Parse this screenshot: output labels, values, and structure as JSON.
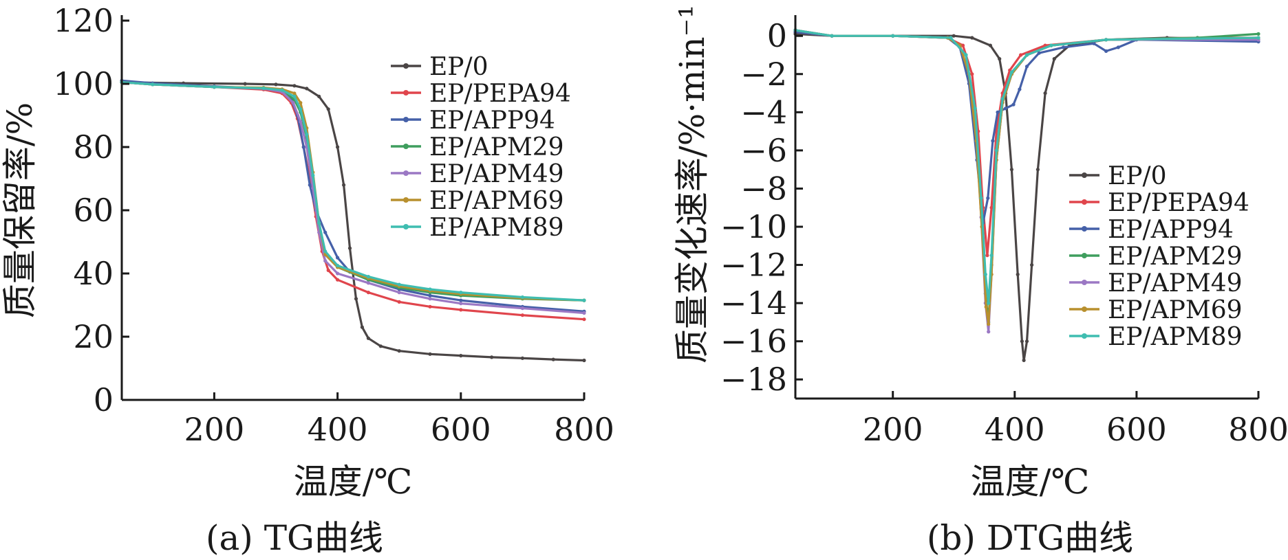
{
  "chart_data": [
    {
      "type": "line",
      "caption": "(a) TG曲线",
      "xlabel": "温度/℃",
      "ylabel": "质量保留率/%",
      "xlim": [
        50,
        800
      ],
      "ylim": [
        0,
        120
      ],
      "xticks": [
        200,
        400,
        600,
        800
      ],
      "yticks": [
        0,
        20,
        40,
        60,
        80,
        100,
        120
      ],
      "grid": false,
      "legend_position": "top-right",
      "series": [
        {
          "name": "EP/0",
          "color": "#4a4545",
          "points": [
            [
              50,
              100.5
            ],
            [
              150,
              100.2
            ],
            [
              250,
              100
            ],
            [
              300,
              99.8
            ],
            [
              330,
              99.4
            ],
            [
              350,
              98.5
            ],
            [
              370,
              96
            ],
            [
              385,
              92
            ],
            [
              400,
              80
            ],
            [
              410,
              68
            ],
            [
              420,
              48
            ],
            [
              430,
              32
            ],
            [
              440,
              23
            ],
            [
              450,
              19.5
            ],
            [
              470,
              17
            ],
            [
              500,
              15.5
            ],
            [
              550,
              14.5
            ],
            [
              600,
              14
            ],
            [
              650,
              13.5
            ],
            [
              700,
              13.2
            ],
            [
              750,
              12.8
            ],
            [
              800,
              12.5
            ]
          ]
        },
        {
          "name": "EP/PEPA94",
          "color": "#e0454c",
          "points": [
            [
              50,
              100.5
            ],
            [
              100,
              99.8
            ],
            [
              200,
              99
            ],
            [
              280,
              98.2
            ],
            [
              310,
              97
            ],
            [
              325,
              94
            ],
            [
              335,
              89
            ],
            [
              345,
              80
            ],
            [
              355,
              70
            ],
            [
              365,
              58
            ],
            [
              375,
              47
            ],
            [
              385,
              41
            ],
            [
              400,
              38
            ],
            [
              450,
              34
            ],
            [
              500,
              31
            ],
            [
              550,
              29.5
            ],
            [
              600,
              28.5
            ],
            [
              700,
              26.8
            ],
            [
              800,
              25.5
            ]
          ]
        },
        {
          "name": "EP/APP94",
          "color": "#4560a8",
          "points": [
            [
              50,
              101
            ],
            [
              100,
              100.2
            ],
            [
              200,
              99.2
            ],
            [
              280,
              98.5
            ],
            [
              310,
              97.5
            ],
            [
              325,
              95
            ],
            [
              335,
              90
            ],
            [
              345,
              80
            ],
            [
              355,
              68
            ],
            [
              365,
              60
            ],
            [
              380,
              53
            ],
            [
              400,
              45
            ],
            [
              420,
              40.5
            ],
            [
              450,
              38
            ],
            [
              500,
              35
            ],
            [
              550,
              33
            ],
            [
              600,
              31.5
            ],
            [
              700,
              29.5
            ],
            [
              800,
              28
            ]
          ]
        },
        {
          "name": "EP/APM29",
          "color": "#3f9e5e",
          "points": [
            [
              50,
              100.5
            ],
            [
              100,
              99.8
            ],
            [
              200,
              99
            ],
            [
              280,
              98.5
            ],
            [
              310,
              97.8
            ],
            [
              330,
              95
            ],
            [
              340,
              91
            ],
            [
              350,
              83
            ],
            [
              360,
              70
            ],
            [
              370,
              55
            ],
            [
              380,
              46
            ],
            [
              400,
              42
            ],
            [
              450,
              38
            ],
            [
              500,
              35.5
            ],
            [
              550,
              34
            ],
            [
              600,
              33
            ],
            [
              700,
              32
            ],
            [
              800,
              31.5
            ]
          ]
        },
        {
          "name": "EP/APM49",
          "color": "#9b78c4",
          "points": [
            [
              50,
              100.5
            ],
            [
              100,
              99.8
            ],
            [
              200,
              99
            ],
            [
              280,
              98.5
            ],
            [
              310,
              97.5
            ],
            [
              328,
              94
            ],
            [
              340,
              88
            ],
            [
              350,
              80
            ],
            [
              360,
              67
            ],
            [
              370,
              53
            ],
            [
              380,
              44
            ],
            [
              400,
              40
            ],
            [
              450,
              37
            ],
            [
              500,
              34
            ],
            [
              550,
              32
            ],
            [
              600,
              30.5
            ],
            [
              700,
              29
            ],
            [
              800,
              27.5
            ]
          ]
        },
        {
          "name": "EP/APM69",
          "color": "#b8902e",
          "points": [
            [
              50,
              100.5
            ],
            [
              100,
              99.8
            ],
            [
              200,
              99
            ],
            [
              280,
              98.8
            ],
            [
              310,
              98.3
            ],
            [
              330,
              97
            ],
            [
              340,
              94
            ],
            [
              350,
              86
            ],
            [
              360,
              72
            ],
            [
              370,
              56
            ],
            [
              380,
              46
            ],
            [
              400,
              42
            ],
            [
              450,
              38.5
            ],
            [
              500,
              36
            ],
            [
              550,
              34.5
            ],
            [
              600,
              33.5
            ],
            [
              700,
              32.2
            ],
            [
              800,
              31.5
            ]
          ]
        },
        {
          "name": "EP/APM89",
          "color": "#3fbdb0",
          "points": [
            [
              50,
              100.5
            ],
            [
              100,
              99.8
            ],
            [
              200,
              99
            ],
            [
              280,
              98.6
            ],
            [
              310,
              98
            ],
            [
              330,
              96
            ],
            [
              340,
              92
            ],
            [
              350,
              84
            ],
            [
              360,
              71
            ],
            [
              370,
              56
            ],
            [
              380,
              47
            ],
            [
              400,
              42.5
            ],
            [
              450,
              39
            ],
            [
              500,
              36.5
            ],
            [
              550,
              35
            ],
            [
              600,
              34
            ],
            [
              700,
              32.5
            ],
            [
              800,
              31.5
            ]
          ]
        }
      ]
    },
    {
      "type": "line",
      "caption": "(b) DTG曲线",
      "xlabel": "温度/℃",
      "ylabel": "质量变化速率/%·min⁻¹",
      "xlim": [
        40,
        800
      ],
      "ylim": [
        -19,
        0.8
      ],
      "xticks": [
        200,
        400,
        600,
        800
      ],
      "yticks": [
        0,
        -2,
        -4,
        -6,
        -8,
        -10,
        -12,
        -14,
        -16,
        -18
      ],
      "grid": false,
      "legend_position": "right",
      "series": [
        {
          "name": "EP/0",
          "color": "#4a4545",
          "points": [
            [
              40,
              0.1
            ],
            [
              100,
              0
            ],
            [
              200,
              0
            ],
            [
              300,
              0
            ],
            [
              330,
              -0.1
            ],
            [
              360,
              -0.5
            ],
            [
              375,
              -1.2
            ],
            [
              385,
              -3
            ],
            [
              395,
              -7
            ],
            [
              405,
              -12.5
            ],
            [
              412,
              -16
            ],
            [
              415,
              -17
            ],
            [
              420,
              -16
            ],
            [
              428,
              -12
            ],
            [
              438,
              -7
            ],
            [
              450,
              -3
            ],
            [
              465,
              -1.2
            ],
            [
              490,
              -0.5
            ],
            [
              550,
              -0.2
            ],
            [
              650,
              -0.1
            ],
            [
              800,
              -0.2
            ]
          ]
        },
        {
          "name": "EP/PEPA94",
          "color": "#e0454c",
          "points": [
            [
              40,
              0.2
            ],
            [
              100,
              0
            ],
            [
              200,
              0
            ],
            [
              290,
              -0.1
            ],
            [
              315,
              -0.5
            ],
            [
              330,
              -2
            ],
            [
              340,
              -5
            ],
            [
              348,
              -9
            ],
            [
              355,
              -11.5
            ],
            [
              362,
              -9
            ],
            [
              370,
              -5
            ],
            [
              380,
              -3
            ],
            [
              392,
              -1.8
            ],
            [
              410,
              -1
            ],
            [
              450,
              -0.5
            ],
            [
              550,
              -0.2
            ],
            [
              700,
              -0.1
            ],
            [
              800,
              -0.1
            ]
          ]
        },
        {
          "name": "EP/APP94",
          "color": "#4560a8",
          "points": [
            [
              40,
              0.2
            ],
            [
              100,
              0
            ],
            [
              200,
              0
            ],
            [
              290,
              -0.1
            ],
            [
              310,
              -0.6
            ],
            [
              325,
              -2.5
            ],
            [
              338,
              -6.5
            ],
            [
              348,
              -9.8
            ],
            [
              356,
              -8.5
            ],
            [
              364,
              -5.5
            ],
            [
              372,
              -4
            ],
            [
              385,
              -3.8
            ],
            [
              398,
              -3.6
            ],
            [
              408,
              -2.8
            ],
            [
              420,
              -1.6
            ],
            [
              440,
              -0.9
            ],
            [
              480,
              -0.6
            ],
            [
              530,
              -0.4
            ],
            [
              550,
              -0.8
            ],
            [
              570,
              -0.6
            ],
            [
              600,
              -0.2
            ],
            [
              800,
              -0.3
            ]
          ]
        },
        {
          "name": "EP/APM29",
          "color": "#3f9e5e",
          "points": [
            [
              40,
              0.3
            ],
            [
              100,
              0
            ],
            [
              200,
              0
            ],
            [
              295,
              -0.1
            ],
            [
              320,
              -1
            ],
            [
              335,
              -4
            ],
            [
              345,
              -9
            ],
            [
              352,
              -13.5
            ],
            [
              357,
              -15
            ],
            [
              362,
              -12
            ],
            [
              370,
              -6.5
            ],
            [
              380,
              -3.5
            ],
            [
              395,
              -2
            ],
            [
              420,
              -1
            ],
            [
              460,
              -0.5
            ],
            [
              550,
              -0.2
            ],
            [
              700,
              -0.1
            ],
            [
              800,
              0.1
            ]
          ]
        },
        {
          "name": "EP/APM49",
          "color": "#9b78c4",
          "points": [
            [
              40,
              0.3
            ],
            [
              100,
              0
            ],
            [
              200,
              0
            ],
            [
              295,
              -0.1
            ],
            [
              320,
              -1
            ],
            [
              335,
              -4
            ],
            [
              345,
              -9.5
            ],
            [
              352,
              -14
            ],
            [
              357,
              -15.5
            ],
            [
              362,
              -12.5
            ],
            [
              370,
              -6.5
            ],
            [
              380,
              -3.5
            ],
            [
              395,
              -2
            ],
            [
              420,
              -1
            ],
            [
              460,
              -0.5
            ],
            [
              550,
              -0.2
            ],
            [
              800,
              -0.2
            ]
          ]
        },
        {
          "name": "EP/APM69",
          "color": "#b8902e",
          "points": [
            [
              40,
              0.3
            ],
            [
              100,
              0
            ],
            [
              200,
              0
            ],
            [
              290,
              -0.1
            ],
            [
              310,
              -0.5
            ],
            [
              325,
              -2
            ],
            [
              337,
              -5.5
            ],
            [
              346,
              -10
            ],
            [
              353,
              -14.2
            ],
            [
              357,
              -15.1
            ],
            [
              362,
              -12.5
            ],
            [
              370,
              -6.5
            ],
            [
              380,
              -3.5
            ],
            [
              395,
              -2
            ],
            [
              420,
              -1
            ],
            [
              460,
              -0.5
            ],
            [
              550,
              -0.2
            ],
            [
              800,
              -0.1
            ]
          ]
        },
        {
          "name": "EP/APM89",
          "color": "#3fbdb0",
          "points": [
            [
              40,
              0.3
            ],
            [
              100,
              0
            ],
            [
              200,
              0
            ],
            [
              295,
              -0.1
            ],
            [
              320,
              -1
            ],
            [
              335,
              -3.8
            ],
            [
              345,
              -8.5
            ],
            [
              352,
              -12.5
            ],
            [
              357,
              -14
            ],
            [
              362,
              -11.5
            ],
            [
              370,
              -6
            ],
            [
              380,
              -3.3
            ],
            [
              395,
              -1.9
            ],
            [
              420,
              -1
            ],
            [
              460,
              -0.5
            ],
            [
              550,
              -0.2
            ],
            [
              800,
              -0.1
            ]
          ]
        }
      ]
    }
  ]
}
